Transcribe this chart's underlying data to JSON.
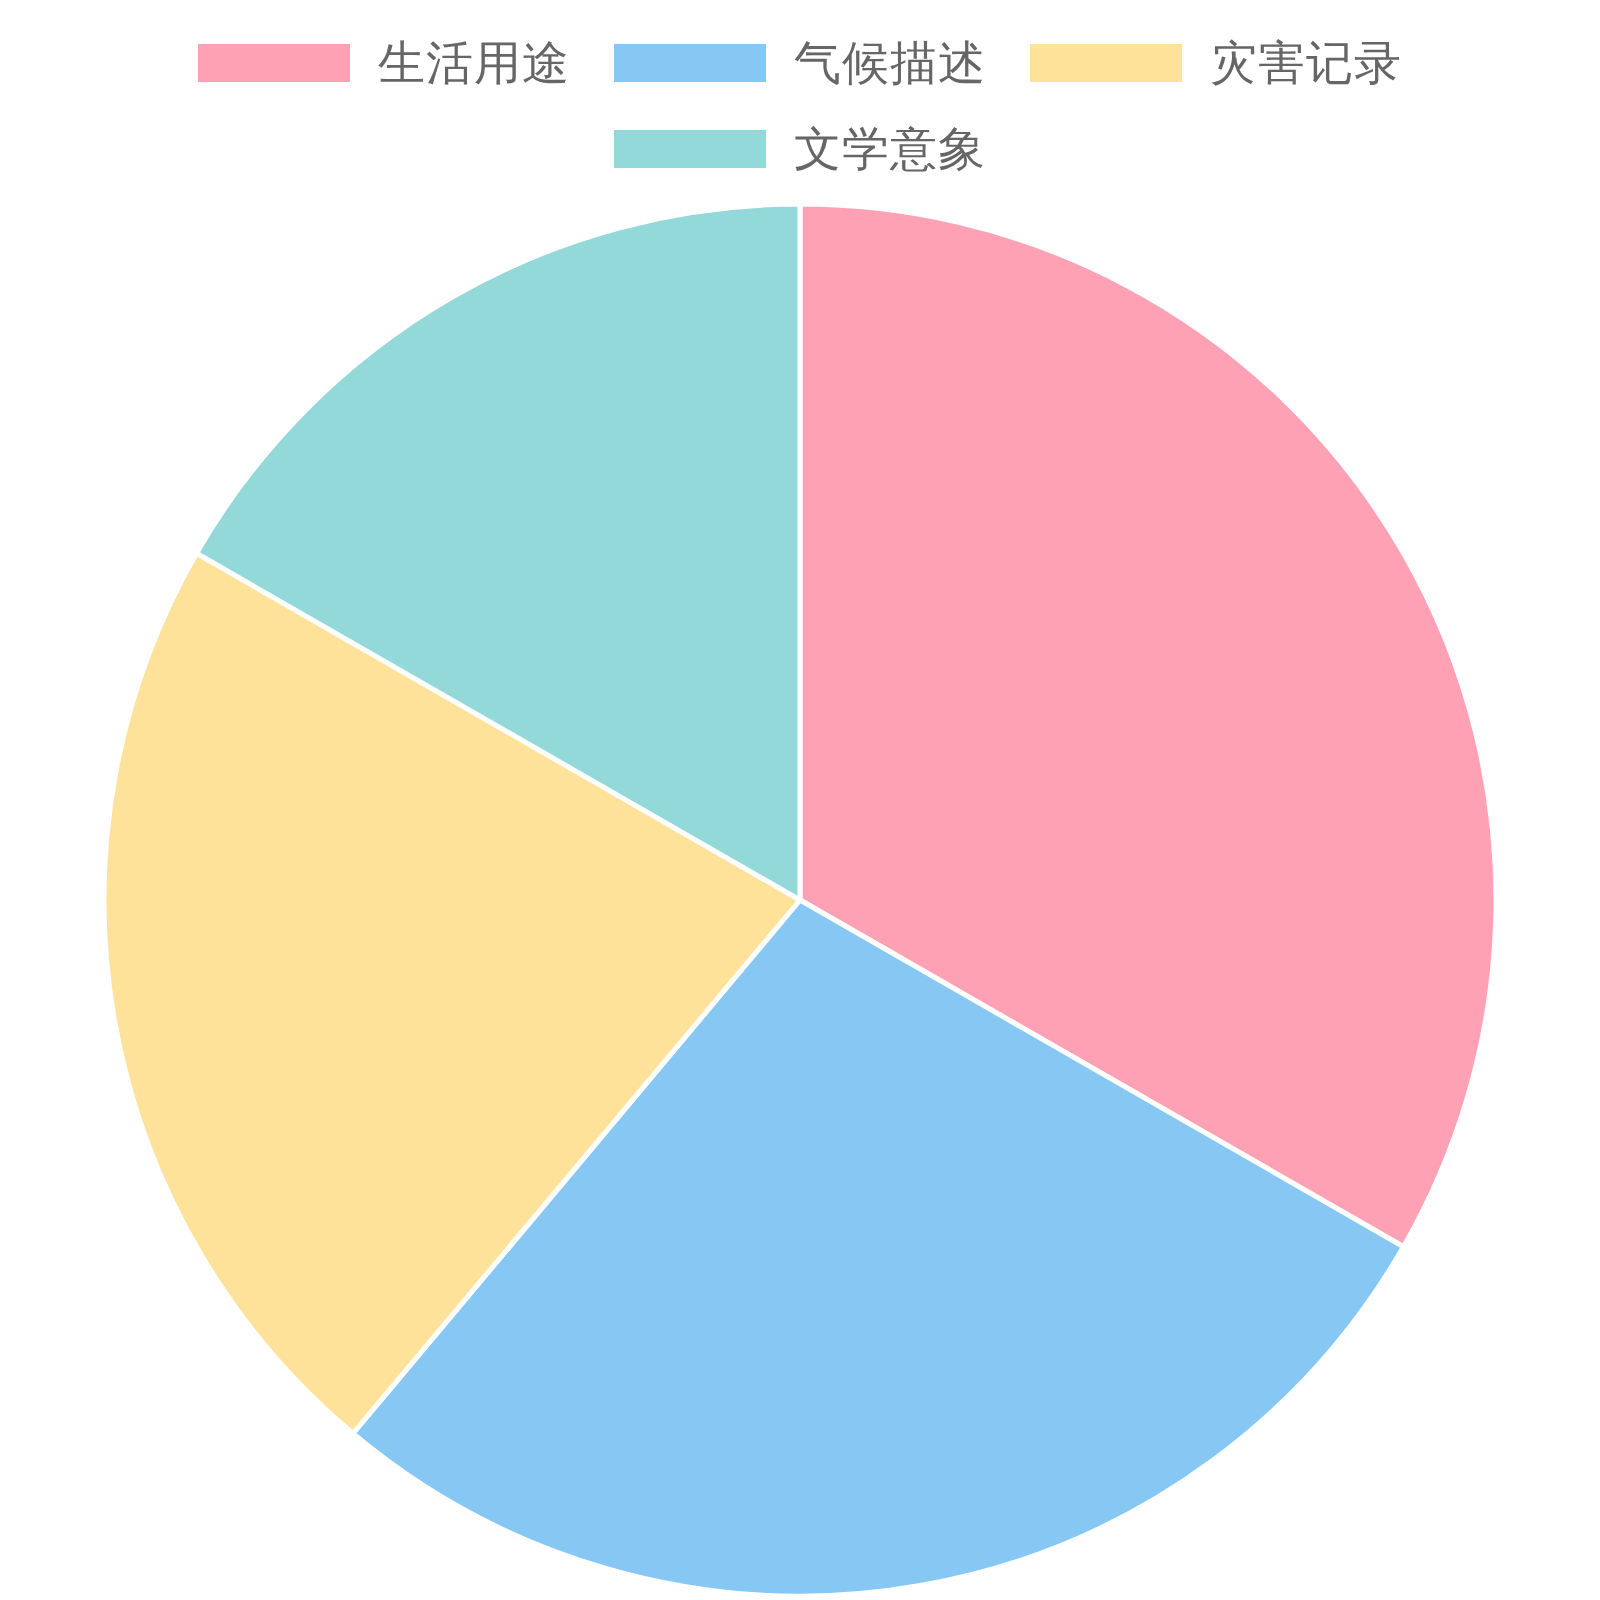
{
  "chart_data": {
    "type": "pie",
    "categories": [
      "生活用途",
      "气候描述",
      "灾害记录",
      "文学意象"
    ],
    "values": [
      33.3,
      27.8,
      22.2,
      16.7
    ],
    "colors": [
      "#ffa1b5",
      "#86c7f3",
      "#ffe29a",
      "#93d9d9"
    ],
    "legend": "top"
  }
}
